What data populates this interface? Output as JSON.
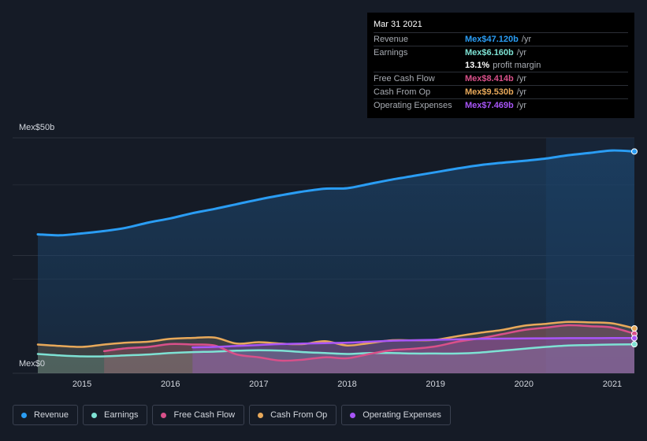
{
  "tooltip": {
    "date": "Mar 31 2021",
    "rows": [
      {
        "label": "Revenue",
        "value": "Mex$47.120b",
        "unit": "/yr",
        "color": "#2a9df4"
      },
      {
        "label": "Earnings",
        "value": "Mex$6.160b",
        "unit": "/yr",
        "color": "#7ee2d4"
      },
      {
        "label": "",
        "value": "13.1%",
        "unit": "profit margin",
        "color": "#ffffff"
      },
      {
        "label": "Free Cash Flow",
        "value": "Mex$8.414b",
        "unit": "/yr",
        "color": "#d9508a"
      },
      {
        "label": "Cash From Op",
        "value": "Mex$9.530b",
        "unit": "/yr",
        "color": "#e8a95a"
      },
      {
        "label": "Operating Expenses",
        "value": "Mex$7.469b",
        "unit": "/yr",
        "color": "#a855f7"
      }
    ]
  },
  "chart_data": {
    "type": "line",
    "ylabel_top": "Mex$50b",
    "ylabel_bottom": "Mex$0",
    "ylim": [
      0,
      50
    ],
    "xlim": [
      2014.5,
      2021.25
    ],
    "x_ticks": [
      "2015",
      "2016",
      "2017",
      "2018",
      "2019",
      "2020",
      "2021"
    ],
    "x_tick_values": [
      2015,
      2016,
      2017,
      2018,
      2019,
      2020,
      2021
    ],
    "highlight_start": 2020.25,
    "grid": true,
    "series": [
      {
        "name": "Revenue",
        "color": "#2a9df4",
        "fill": true,
        "x": [
          2014.5,
          2014.75,
          2015.0,
          2015.25,
          2015.5,
          2015.75,
          2016.0,
          2016.25,
          2016.5,
          2016.75,
          2017.0,
          2017.25,
          2017.5,
          2017.75,
          2018.0,
          2018.25,
          2018.5,
          2018.75,
          2019.0,
          2019.25,
          2019.5,
          2019.75,
          2020.0,
          2020.25,
          2020.5,
          2020.75,
          2021.0,
          2021.25
        ],
        "values": [
          29.5,
          29.3,
          29.7,
          30.2,
          30.9,
          32.0,
          32.9,
          34.0,
          34.9,
          35.9,
          36.9,
          37.8,
          38.6,
          39.2,
          39.3,
          40.2,
          41.1,
          41.9,
          42.7,
          43.5,
          44.2,
          44.7,
          45.1,
          45.6,
          46.3,
          46.8,
          47.3,
          47.1
        ]
      },
      {
        "name": "Earnings",
        "color": "#7ee2d4",
        "fill": true,
        "x": [
          2014.5,
          2014.75,
          2015.0,
          2015.25,
          2015.5,
          2015.75,
          2016.0,
          2016.25,
          2016.5,
          2016.75,
          2017.0,
          2017.25,
          2017.5,
          2017.75,
          2018.0,
          2018.25,
          2018.5,
          2018.75,
          2019.0,
          2019.25,
          2019.5,
          2019.75,
          2020.0,
          2020.25,
          2020.5,
          2020.75,
          2021.0,
          2021.25
        ],
        "values": [
          4.1,
          3.8,
          3.6,
          3.6,
          3.8,
          4.0,
          4.3,
          4.5,
          4.6,
          4.8,
          4.9,
          4.8,
          4.5,
          4.3,
          4.1,
          4.3,
          4.3,
          4.2,
          4.2,
          4.2,
          4.4,
          4.8,
          5.2,
          5.6,
          5.9,
          6.0,
          6.1,
          6.16
        ]
      },
      {
        "name": "Free Cash Flow",
        "color": "#d9508a",
        "fill": true,
        "x": [
          2015.25,
          2015.5,
          2015.75,
          2016.0,
          2016.25,
          2016.5,
          2016.75,
          2017.0,
          2017.25,
          2017.5,
          2017.75,
          2018.0,
          2018.25,
          2018.5,
          2018.75,
          2019.0,
          2019.25,
          2019.5,
          2019.75,
          2020.0,
          2020.25,
          2020.5,
          2020.75,
          2021.0,
          2021.25
        ],
        "values": [
          4.7,
          5.3,
          5.6,
          6.2,
          6.1,
          5.9,
          4.0,
          3.4,
          2.7,
          2.9,
          3.4,
          3.2,
          4.1,
          4.9,
          5.2,
          5.7,
          6.7,
          7.4,
          8.3,
          9.2,
          9.7,
          10.2,
          10.0,
          9.7,
          8.4
        ]
      },
      {
        "name": "Cash From Op",
        "color": "#e8a95a",
        "fill": true,
        "x": [
          2014.5,
          2014.75,
          2015.0,
          2015.25,
          2015.5,
          2015.75,
          2016.0,
          2016.25,
          2016.5,
          2016.75,
          2017.0,
          2017.25,
          2017.5,
          2017.75,
          2018.0,
          2018.25,
          2018.5,
          2018.75,
          2019.0,
          2019.25,
          2019.5,
          2019.75,
          2020.0,
          2020.25,
          2020.5,
          2020.75,
          2021.0,
          2021.25
        ],
        "values": [
          6.1,
          5.8,
          5.6,
          6.1,
          6.5,
          6.7,
          7.3,
          7.5,
          7.6,
          6.3,
          6.6,
          6.3,
          6.2,
          6.8,
          5.9,
          6.4,
          7.0,
          7.0,
          7.1,
          7.9,
          8.6,
          9.2,
          10.1,
          10.5,
          10.9,
          10.8,
          10.6,
          9.53
        ]
      },
      {
        "name": "Operating Expenses",
        "color": "#a855f7",
        "fill": true,
        "x": [
          2016.25,
          2016.5,
          2016.75,
          2017.0,
          2017.25,
          2017.5,
          2017.75,
          2018.0,
          2018.25,
          2018.5,
          2018.75,
          2019.0,
          2019.25,
          2019.5,
          2019.75,
          2020.0,
          2020.25,
          2020.5,
          2020.75,
          2021.0,
          2021.25
        ],
        "values": [
          5.5,
          5.6,
          5.8,
          6.0,
          6.2,
          6.3,
          6.4,
          6.5,
          6.7,
          6.9,
          7.0,
          7.1,
          7.2,
          7.3,
          7.35,
          7.4,
          7.43,
          7.45,
          7.46,
          7.47,
          7.469
        ]
      }
    ]
  },
  "legend": [
    {
      "label": "Revenue",
      "color": "#2a9df4"
    },
    {
      "label": "Earnings",
      "color": "#7ee2d4"
    },
    {
      "label": "Free Cash Flow",
      "color": "#d9508a"
    },
    {
      "label": "Cash From Op",
      "color": "#e8a95a"
    },
    {
      "label": "Operating Expenses",
      "color": "#a855f7"
    }
  ]
}
